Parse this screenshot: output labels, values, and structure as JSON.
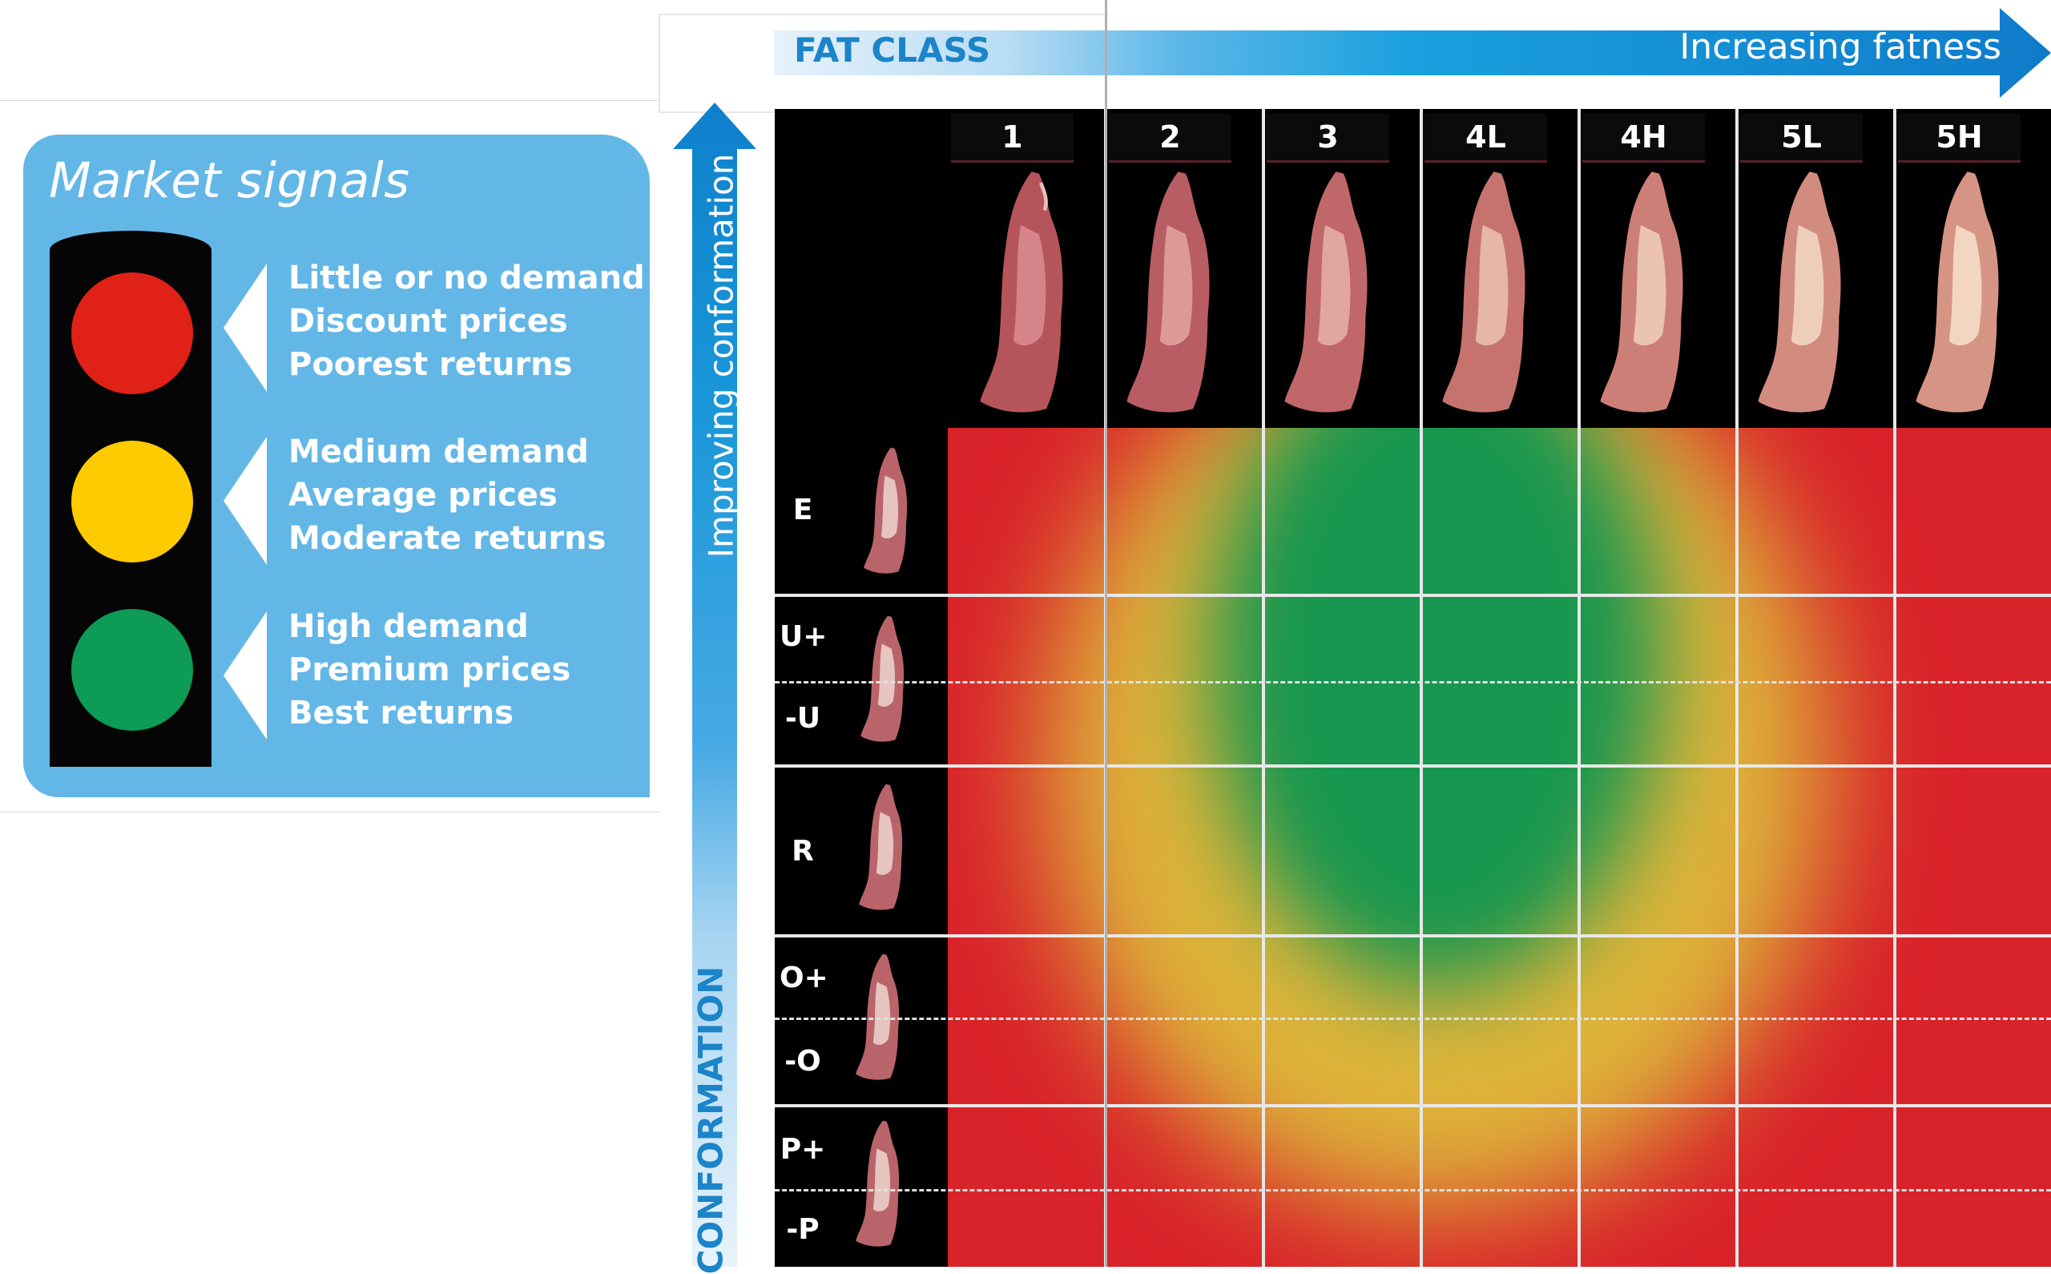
{
  "legend": {
    "title": "Market signals",
    "signals": [
      {
        "color": "#e02118",
        "lines": [
          "Little or no demand",
          "Discount prices",
          "Poorest returns"
        ]
      },
      {
        "color": "#fecb00",
        "lines": [
          "Medium demand",
          "Average prices",
          "Moderate returns"
        ]
      },
      {
        "color": "#0d9b55",
        "lines": [
          "High demand",
          "Premium prices",
          "Best returns"
        ]
      }
    ]
  },
  "fat_axis": {
    "title": "FAT CLASS",
    "subtitle": "Increasing fatness",
    "classes": [
      "1",
      "2",
      "3",
      "4L",
      "4H",
      "5L",
      "5H"
    ]
  },
  "conformation_axis": {
    "title": "CONFORMATION",
    "subtitle": "Improving conformation",
    "classes": [
      "E",
      "U+",
      "-U",
      "R",
      "O+",
      "-O",
      "P+",
      "-P"
    ]
  },
  "colors": {
    "red": "#d9232a",
    "amber": "#ddb43a",
    "green": "#16964f",
    "accent_blue": "#1c84c8"
  }
}
